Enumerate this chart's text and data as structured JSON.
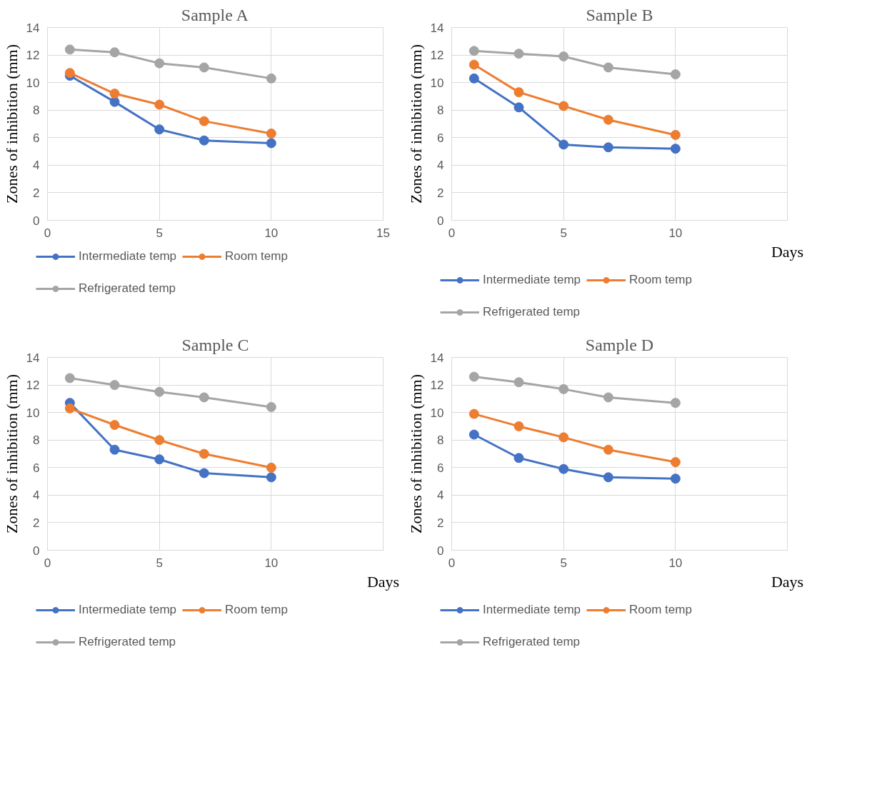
{
  "chart_data": [
    {
      "type": "line",
      "title": "Sample A",
      "ylabel": "Zones of inhibition (mm)",
      "x": [
        1,
        3,
        5,
        7,
        10
      ],
      "xlim": [
        0,
        15
      ],
      "xticks": [
        0,
        5,
        10,
        15
      ],
      "ylim": [
        0,
        14
      ],
      "yticks": [
        0,
        2,
        4,
        6,
        8,
        10,
        12,
        14
      ],
      "grid": true,
      "legend": "bottom",
      "marker": "circle",
      "line_style": "solid",
      "series": [
        {
          "name": "Intermediate temp",
          "color": "#4472c4",
          "values": [
            10.5,
            8.6,
            6.6,
            5.8,
            5.6
          ]
        },
        {
          "name": "Room temp",
          "color": "#ed7d31",
          "values": [
            10.7,
            9.2,
            8.4,
            7.2,
            6.3
          ]
        },
        {
          "name": "Refrigerated temp",
          "color": "#a5a5a5",
          "values": [
            12.4,
            12.2,
            11.4,
            11.1,
            10.3
          ]
        }
      ]
    },
    {
      "type": "line",
      "title": "Sample B",
      "ylabel": "Zones of inhibition (mm)",
      "xlabel": "Days",
      "x": [
        1,
        3,
        5,
        7,
        10
      ],
      "xlim": [
        0,
        15
      ],
      "xticks": [
        0,
        5,
        10
      ],
      "ylim": [
        0,
        14
      ],
      "yticks": [
        0,
        2,
        4,
        6,
        8,
        10,
        12,
        14
      ],
      "grid": true,
      "legend": "bottom",
      "marker": "circle",
      "line_style": "solid",
      "series": [
        {
          "name": "Intermediate temp",
          "color": "#4472c4",
          "values": [
            10.3,
            8.2,
            5.5,
            5.3,
            5.2
          ]
        },
        {
          "name": "Room temp",
          "color": "#ed7d31",
          "values": [
            11.3,
            9.3,
            8.3,
            7.3,
            6.2
          ]
        },
        {
          "name": "Refrigerated temp",
          "color": "#a5a5a5",
          "values": [
            12.3,
            12.1,
            11.9,
            11.1,
            10.6
          ]
        }
      ]
    },
    {
      "type": "line",
      "title": "Sample C",
      "ylabel": "Zones of inhibition (mm)",
      "xlabel": "Days",
      "x": [
        1,
        3,
        5,
        7,
        10
      ],
      "xlim": [
        0,
        15
      ],
      "xticks": [
        0,
        5,
        10
      ],
      "ylim": [
        0,
        14
      ],
      "yticks": [
        0,
        2,
        4,
        6,
        8,
        10,
        12,
        14
      ],
      "grid": true,
      "legend": "bottom",
      "marker": "circle",
      "line_style": "solid",
      "series": [
        {
          "name": "Intermediate temp",
          "color": "#4472c4",
          "values": [
            10.7,
            7.3,
            6.6,
            5.6,
            5.3
          ]
        },
        {
          "name": "Room temp",
          "color": "#ed7d31",
          "values": [
            10.3,
            9.1,
            8.0,
            7.0,
            6.0
          ]
        },
        {
          "name": "Refrigerated temp",
          "color": "#a5a5a5",
          "values": [
            12.5,
            12.0,
            11.5,
            11.1,
            10.4
          ]
        }
      ]
    },
    {
      "type": "line",
      "title": "Sample D",
      "ylabel": "Zones of inhibition (mm)",
      "xlabel": "Days",
      "x": [
        1,
        3,
        5,
        7,
        10
      ],
      "xlim": [
        0,
        15
      ],
      "xticks": [
        0,
        5,
        10
      ],
      "ylim": [
        0,
        14
      ],
      "yticks": [
        0,
        2,
        4,
        6,
        8,
        10,
        12,
        14
      ],
      "grid": true,
      "legend": "bottom",
      "marker": "circle",
      "line_style": "solid",
      "series": [
        {
          "name": "Intermediate temp",
          "color": "#4472c4",
          "values": [
            8.4,
            6.7,
            5.9,
            5.3,
            5.2
          ]
        },
        {
          "name": "Room temp",
          "color": "#ed7d31",
          "values": [
            9.9,
            9.0,
            8.2,
            7.3,
            6.4
          ]
        },
        {
          "name": "Refrigerated temp",
          "color": "#a5a5a5",
          "values": [
            12.6,
            12.2,
            11.7,
            11.1,
            10.7
          ]
        }
      ]
    }
  ]
}
